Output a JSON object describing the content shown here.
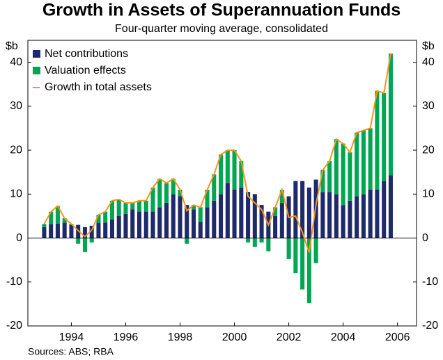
{
  "chart_data": {
    "type": "bar",
    "title": "Growth in Assets of Superannuation Funds",
    "subtitle": "Four-quarter moving average, consolidated",
    "y_unit_left": "$b",
    "y_unit_right": "$b",
    "source": "Sources: ABS; RBA",
    "x": [
      1993.0,
      1993.25,
      1993.5,
      1993.75,
      1994.0,
      1994.25,
      1994.5,
      1994.75,
      1995.0,
      1995.25,
      1995.5,
      1995.75,
      1996.0,
      1996.25,
      1996.5,
      1996.75,
      1997.0,
      1997.25,
      1997.5,
      1997.75,
      1998.0,
      1998.25,
      1998.5,
      1998.75,
      1999.0,
      1999.25,
      1999.5,
      1999.75,
      2000.0,
      2000.25,
      2000.5,
      2000.75,
      2001.0,
      2001.25,
      2001.5,
      2001.75,
      2002.0,
      2002.25,
      2002.5,
      2002.75,
      2003.0,
      2003.25,
      2003.5,
      2003.75,
      2004.0,
      2004.25,
      2004.5,
      2004.75,
      2005.0,
      2005.25,
      2005.5,
      2005.75
    ],
    "series": [
      {
        "name": "Net contributions",
        "color": "#1f2a6b",
        "stack": true,
        "values": [
          2.5,
          3.2,
          3.3,
          3.5,
          3.0,
          3.0,
          2.5,
          2.8,
          3.5,
          3.5,
          4.2,
          5.0,
          5.5,
          6.5,
          6.0,
          6.0,
          6.0,
          7.0,
          8.0,
          10.0,
          9.5,
          7.5,
          6.5,
          3.7,
          7.0,
          8.5,
          10.0,
          12.5,
          11.0,
          11.5,
          10.5,
          10.0,
          7.5,
          6.0,
          5.0,
          8.0,
          9.5,
          13.0,
          13.0,
          11.5,
          13.3,
          10.5,
          10.5,
          10.0,
          7.5,
          8.5,
          9.5,
          10.0,
          11.0,
          11.0,
          13.0,
          14.3
        ]
      },
      {
        "name": "Valuation effects",
        "color": "#00a651",
        "stack": true,
        "values": [
          0.7,
          2.8,
          4.0,
          1.0,
          0.2,
          -1.3,
          -3.2,
          -1.0,
          1.8,
          2.5,
          4.3,
          3.8,
          2.5,
          1.5,
          2.5,
          2.5,
          5.5,
          6.5,
          4.5,
          3.5,
          1.5,
          -1.3,
          1.0,
          3.3,
          4.0,
          6.0,
          9.0,
          7.5,
          9.0,
          6.0,
          -1.0,
          -2.0,
          -1.0,
          -3.0,
          2.0,
          3.0,
          -4.8,
          -8.0,
          -11.7,
          -14.8,
          -5.7,
          5.0,
          7.0,
          12.5,
          14.0,
          11.0,
          14.5,
          14.5,
          14.0,
          22.5,
          20.0,
          27.7
        ]
      },
      {
        "name": "Growth in total assets",
        "color": "#f7941d",
        "line": true,
        "values": [
          3.2,
          6.0,
          7.3,
          4.5,
          3.2,
          1.7,
          0.3,
          1.8,
          5.3,
          6.0,
          8.5,
          8.8,
          8.0,
          8.0,
          8.5,
          8.5,
          11.5,
          13.5,
          12.5,
          13.5,
          11.0,
          6.2,
          7.5,
          7.0,
          11.0,
          14.5,
          19.0,
          20.0,
          20.0,
          17.5,
          9.5,
          8.0,
          6.5,
          3.0,
          7.0,
          11.0,
          4.7,
          5.0,
          1.3,
          -3.3,
          7.6,
          15.5,
          17.5,
          22.5,
          21.5,
          19.5,
          24.0,
          24.5,
          25.0,
          33.5,
          33.0,
          42.0
        ]
      }
    ],
    "xlim": [
      1992.4,
      2006.7
    ],
    "xticks": [
      1994,
      1996,
      1998,
      2000,
      2002,
      2004,
      2006
    ],
    "ylim": [
      -20,
      45
    ],
    "yticks": [
      -20,
      -10,
      0,
      10,
      20,
      30,
      40
    ]
  }
}
